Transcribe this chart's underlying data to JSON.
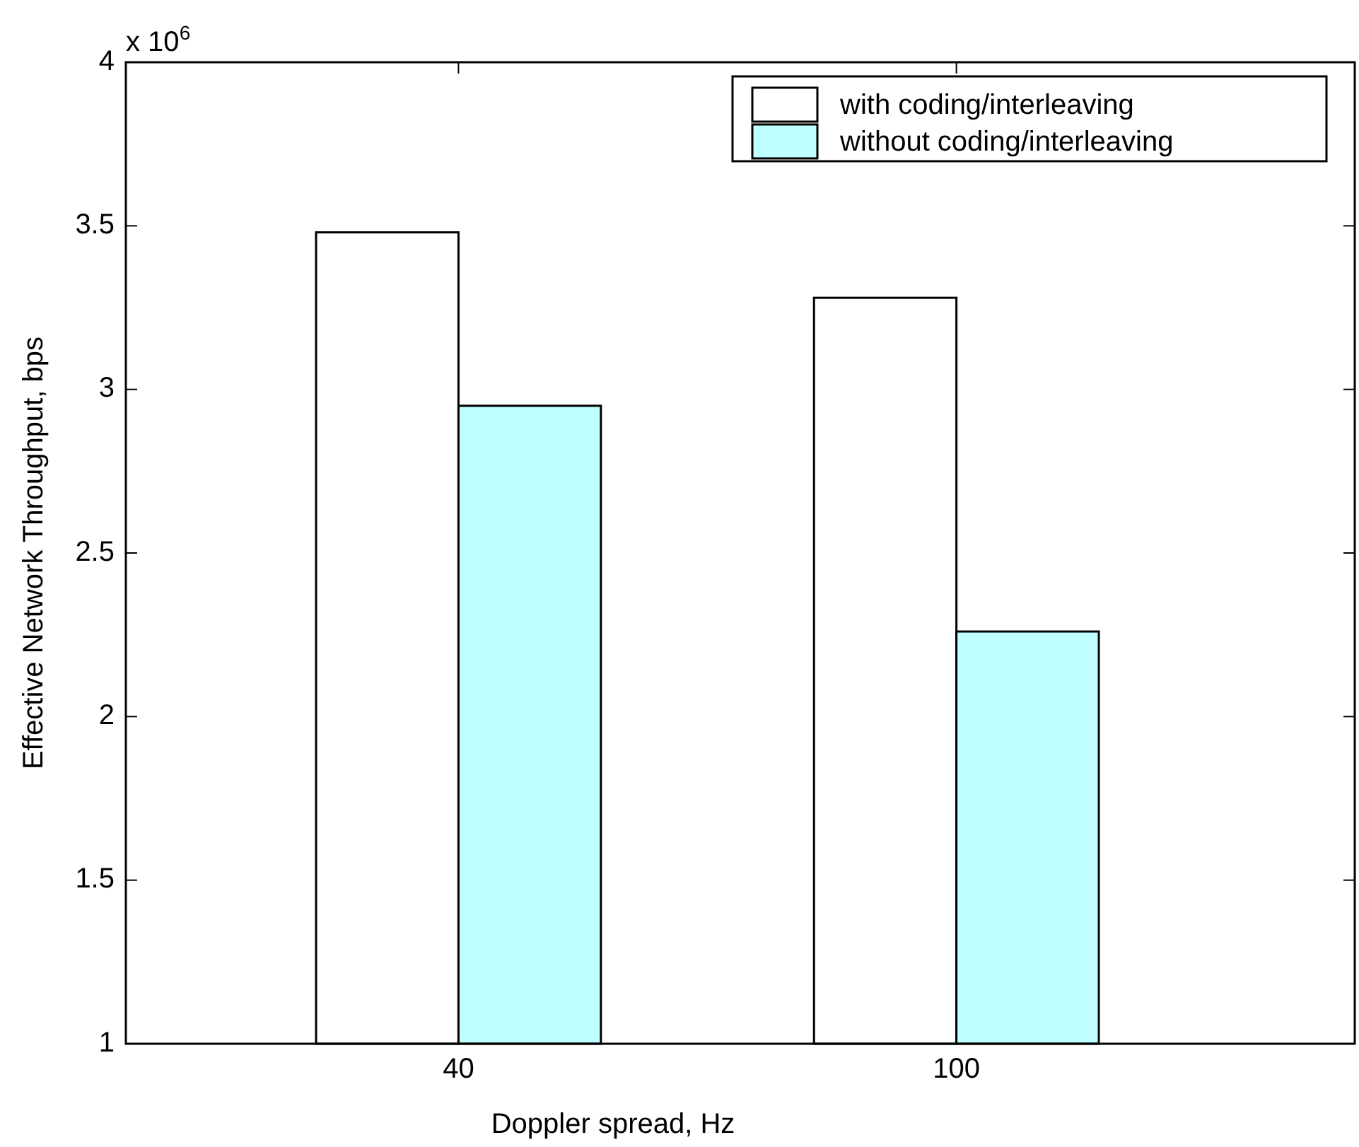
{
  "chart_data": {
    "type": "bar",
    "xlabel": "Doppler spread, Hz",
    "ylabel": "Effective Network Throughput, bps",
    "annotations": [
      "x 10$^{6}$"
    ],
    "categories": [
      "40",
      "100"
    ],
    "series": [
      {
        "name": "with coding/interleaving",
        "color": "#ffffff",
        "values": [
          3.48,
          3.28
        ]
      },
      {
        "name": "without coding/interleaving",
        "color": "#c0ffff",
        "values": [
          2.95,
          2.26
        ]
      }
    ],
    "ylim": [
      1,
      4
    ],
    "yticks": [
      1,
      1.5,
      2,
      2.5,
      3,
      3.5,
      4
    ],
    "legend": "top right"
  }
}
